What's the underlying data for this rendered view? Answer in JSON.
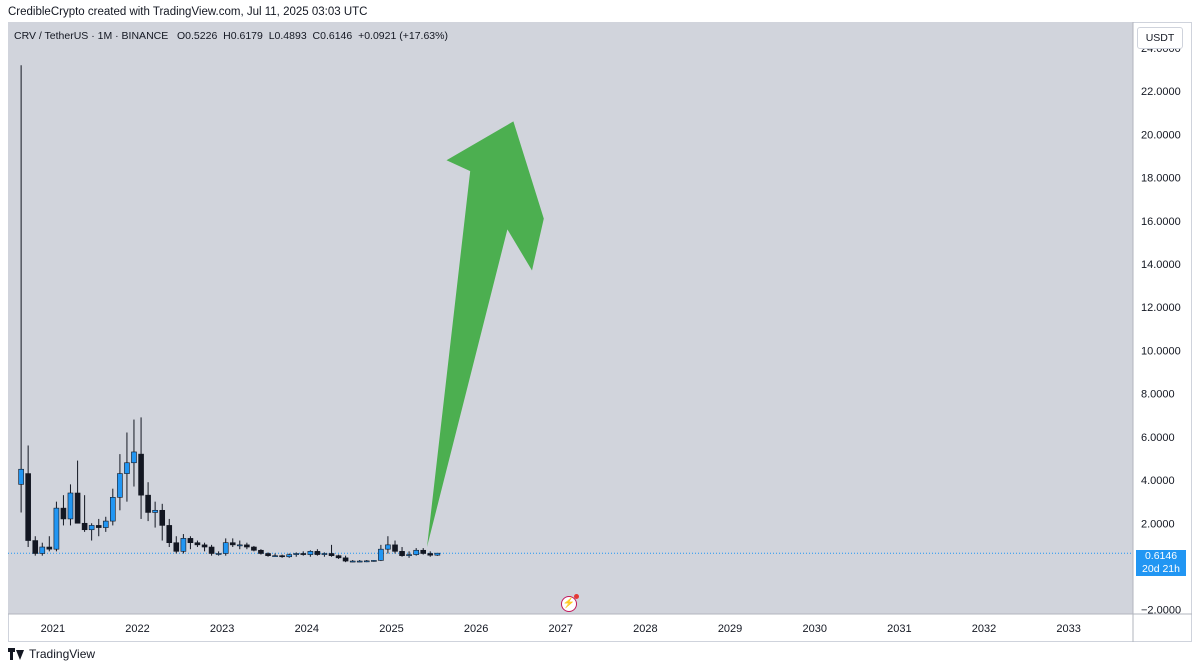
{
  "header": {
    "text": "CredibleCrypto created with TradingView.com, Jul 11, 2025 03:03 UTC"
  },
  "legend": {
    "symbol": "CRV / TetherUS · 1M · BINANCE",
    "o_label": "O",
    "o_value": "0.5226",
    "h_label": "H",
    "h_value": "0.6179",
    "l_label": "L",
    "l_value": "0.4893",
    "c_label": "C",
    "c_value": "0.6146",
    "change": "+0.0921 (+17.63%)"
  },
  "unit_button": "USDT",
  "price_label": {
    "price": "0.6146",
    "countdown": "20d 21h"
  },
  "footer": {
    "brand": "TradingView"
  },
  "icons": {
    "logo": "tradingview-logo-icon",
    "bolt": "lightning-icon"
  },
  "colors": {
    "background": "#d1d4dc",
    "up": "#2196f3",
    "down": "#131722",
    "arrow": "#4caf50",
    "price_line": "#2196f3"
  },
  "chart_data": {
    "type": "candlestick",
    "title": "CRV / TetherUS · 1M · BINANCE",
    "interval": "1M",
    "y_axis": {
      "ticks": [
        "24.0000",
        "22.0000",
        "20.0000",
        "18.0000",
        "16.0000",
        "14.0000",
        "12.0000",
        "10.0000",
        "8.0000",
        "6.0000",
        "4.0000",
        "2.0000",
        "−2.0000"
      ],
      "range": [
        -2.2,
        25.2
      ]
    },
    "x_axis": {
      "ticks": [
        "2021",
        "2022",
        "2023",
        "2024",
        "2025",
        "2026",
        "2027",
        "2028",
        "2029",
        "2030",
        "2031",
        "2032",
        "2033"
      ],
      "range": [
        2020.47,
        2033.76
      ]
    },
    "current_price": 0.6146,
    "candles": [
      {
        "t": 2020.625,
        "o": 3.8,
        "h": 23.2,
        "l": 2.5,
        "c": 4.5
      },
      {
        "t": 2020.708,
        "o": 4.3,
        "h": 5.6,
        "l": 0.9,
        "c": 1.2
      },
      {
        "t": 2020.792,
        "o": 1.2,
        "h": 1.4,
        "l": 0.5,
        "c": 0.6
      },
      {
        "t": 2020.875,
        "o": 0.6,
        "h": 1.1,
        "l": 0.5,
        "c": 0.9
      },
      {
        "t": 2020.958,
        "o": 0.9,
        "h": 1.4,
        "l": 0.7,
        "c": 0.8
      },
      {
        "t": 2021.042,
        "o": 0.8,
        "h": 3.0,
        "l": 0.7,
        "c": 2.7
      },
      {
        "t": 2021.125,
        "o": 2.7,
        "h": 3.3,
        "l": 1.9,
        "c": 2.2
      },
      {
        "t": 2021.208,
        "o": 2.2,
        "h": 3.8,
        "l": 1.9,
        "c": 3.4
      },
      {
        "t": 2021.292,
        "o": 3.4,
        "h": 4.9,
        "l": 2.0,
        "c": 2.0
      },
      {
        "t": 2021.375,
        "o": 2.0,
        "h": 3.3,
        "l": 1.6,
        "c": 1.7
      },
      {
        "t": 2021.458,
        "o": 1.7,
        "h": 2.0,
        "l": 1.2,
        "c": 1.9
      },
      {
        "t": 2021.542,
        "o": 1.9,
        "h": 2.2,
        "l": 1.4,
        "c": 1.8
      },
      {
        "t": 2021.625,
        "o": 1.8,
        "h": 2.3,
        "l": 1.6,
        "c": 2.1
      },
      {
        "t": 2021.708,
        "o": 2.1,
        "h": 3.6,
        "l": 1.9,
        "c": 3.2
      },
      {
        "t": 2021.792,
        "o": 3.2,
        "h": 5.2,
        "l": 2.6,
        "c": 4.3
      },
      {
        "t": 2021.875,
        "o": 4.3,
        "h": 6.2,
        "l": 3.0,
        "c": 4.8
      },
      {
        "t": 2021.958,
        "o": 4.8,
        "h": 6.8,
        "l": 3.7,
        "c": 5.3
      },
      {
        "t": 2022.042,
        "o": 5.2,
        "h": 6.9,
        "l": 2.2,
        "c": 3.3
      },
      {
        "t": 2022.125,
        "o": 3.3,
        "h": 3.9,
        "l": 2.1,
        "c": 2.5
      },
      {
        "t": 2022.208,
        "o": 2.5,
        "h": 3.0,
        "l": 1.8,
        "c": 2.6
      },
      {
        "t": 2022.292,
        "o": 2.6,
        "h": 2.9,
        "l": 1.2,
        "c": 1.9
      },
      {
        "t": 2022.375,
        "o": 1.9,
        "h": 2.2,
        "l": 0.9,
        "c": 1.1
      },
      {
        "t": 2022.458,
        "o": 1.1,
        "h": 1.4,
        "l": 0.6,
        "c": 0.7
      },
      {
        "t": 2022.542,
        "o": 0.7,
        "h": 1.5,
        "l": 0.6,
        "c": 1.3
      },
      {
        "t": 2022.625,
        "o": 1.3,
        "h": 1.4,
        "l": 0.8,
        "c": 1.1
      },
      {
        "t": 2022.708,
        "o": 1.1,
        "h": 1.2,
        "l": 0.9,
        "c": 1.0
      },
      {
        "t": 2022.792,
        "o": 1.0,
        "h": 1.1,
        "l": 0.7,
        "c": 0.9
      },
      {
        "t": 2022.875,
        "o": 0.9,
        "h": 1.0,
        "l": 0.5,
        "c": 0.6
      },
      {
        "t": 2022.958,
        "o": 0.6,
        "h": 0.7,
        "l": 0.5,
        "c": 0.6
      },
      {
        "t": 2023.042,
        "o": 0.6,
        "h": 1.3,
        "l": 0.5,
        "c": 1.1
      },
      {
        "t": 2023.125,
        "o": 1.1,
        "h": 1.3,
        "l": 0.9,
        "c": 1.0
      },
      {
        "t": 2023.208,
        "o": 1.0,
        "h": 1.2,
        "l": 0.8,
        "c": 1.0
      },
      {
        "t": 2023.292,
        "o": 1.0,
        "h": 1.1,
        "l": 0.8,
        "c": 0.9
      },
      {
        "t": 2023.375,
        "o": 0.9,
        "h": 0.95,
        "l": 0.7,
        "c": 0.75
      },
      {
        "t": 2023.458,
        "o": 0.75,
        "h": 0.8,
        "l": 0.55,
        "c": 0.6
      },
      {
        "t": 2023.542,
        "o": 0.6,
        "h": 0.65,
        "l": 0.45,
        "c": 0.5
      },
      {
        "t": 2023.625,
        "o": 0.5,
        "h": 0.6,
        "l": 0.45,
        "c": 0.5
      },
      {
        "t": 2023.708,
        "o": 0.5,
        "h": 0.55,
        "l": 0.4,
        "c": 0.45
      },
      {
        "t": 2023.792,
        "o": 0.45,
        "h": 0.6,
        "l": 0.4,
        "c": 0.55
      },
      {
        "t": 2023.875,
        "o": 0.55,
        "h": 0.65,
        "l": 0.45,
        "c": 0.6
      },
      {
        "t": 2023.958,
        "o": 0.6,
        "h": 0.7,
        "l": 0.5,
        "c": 0.55
      },
      {
        "t": 2024.042,
        "o": 0.55,
        "h": 0.75,
        "l": 0.45,
        "c": 0.7
      },
      {
        "t": 2024.125,
        "o": 0.7,
        "h": 0.8,
        "l": 0.5,
        "c": 0.55
      },
      {
        "t": 2024.208,
        "o": 0.55,
        "h": 0.65,
        "l": 0.45,
        "c": 0.6
      },
      {
        "t": 2024.292,
        "o": 0.6,
        "h": 1.0,
        "l": 0.45,
        "c": 0.5
      },
      {
        "t": 2024.375,
        "o": 0.5,
        "h": 0.55,
        "l": 0.35,
        "c": 0.4
      },
      {
        "t": 2024.458,
        "o": 0.4,
        "h": 0.5,
        "l": 0.2,
        "c": 0.25
      },
      {
        "t": 2024.542,
        "o": 0.25,
        "h": 0.3,
        "l": 0.2,
        "c": 0.25
      },
      {
        "t": 2024.625,
        "o": 0.25,
        "h": 0.3,
        "l": 0.2,
        "c": 0.25
      },
      {
        "t": 2024.708,
        "o": 0.25,
        "h": 0.3,
        "l": 0.2,
        "c": 0.26
      },
      {
        "t": 2024.792,
        "o": 0.26,
        "h": 0.3,
        "l": 0.22,
        "c": 0.28
      },
      {
        "t": 2024.875,
        "o": 0.28,
        "h": 1.0,
        "l": 0.25,
        "c": 0.8
      },
      {
        "t": 2024.958,
        "o": 0.8,
        "h": 1.4,
        "l": 0.6,
        "c": 1.0
      },
      {
        "t": 2025.042,
        "o": 1.0,
        "h": 1.2,
        "l": 0.6,
        "c": 0.7
      },
      {
        "t": 2025.125,
        "o": 0.7,
        "h": 0.9,
        "l": 0.45,
        "c": 0.5
      },
      {
        "t": 2025.208,
        "o": 0.5,
        "h": 0.7,
        "l": 0.4,
        "c": 0.55
      },
      {
        "t": 2025.292,
        "o": 0.55,
        "h": 0.85,
        "l": 0.5,
        "c": 0.75
      },
      {
        "t": 2025.375,
        "o": 0.75,
        "h": 0.85,
        "l": 0.55,
        "c": 0.6
      },
      {
        "t": 2025.458,
        "o": 0.6,
        "h": 0.7,
        "l": 0.45,
        "c": 0.52
      },
      {
        "t": 2025.542,
        "o": 0.5226,
        "h": 0.6179,
        "l": 0.4893,
        "c": 0.6146
      }
    ],
    "annotation_arrow": {
      "direction": "up",
      "path_points": [
        [
          2025.42,
          0.9
        ],
        [
          2026.37,
          15.6
        ],
        [
          2026.66,
          13.7
        ],
        [
          2026.8,
          16.1
        ],
        [
          2026.44,
          20.6
        ],
        [
          2025.65,
          18.8
        ],
        [
          2025.93,
          18.3
        ]
      ]
    }
  }
}
